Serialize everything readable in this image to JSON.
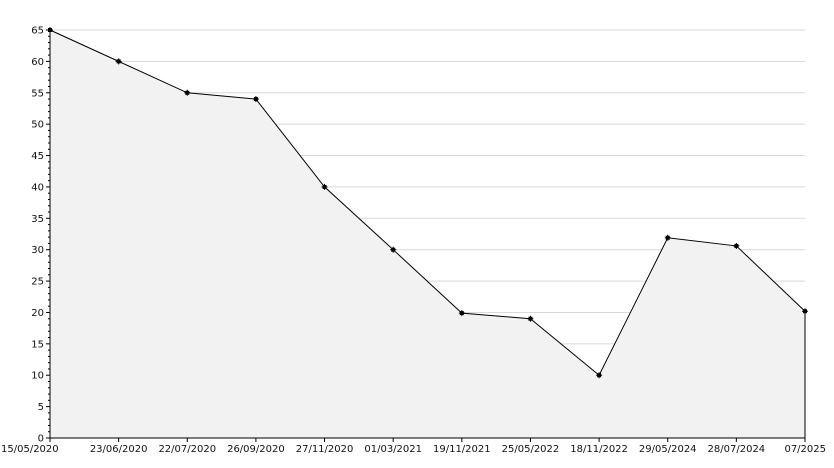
{
  "colors": {
    "background": "#ffffff",
    "grid": "#d8d8d8",
    "axis": "#000000",
    "area_fill": "#f2f2f2",
    "line": "#000000",
    "marker": "#000000"
  },
  "chart_data": {
    "type": "area",
    "title": "",
    "xlabel": "",
    "ylabel": "",
    "grid": "horizontal",
    "legend": "none",
    "ylim": [
      0,
      65
    ],
    "y_ticks": [
      0,
      5,
      10,
      15,
      20,
      25,
      30,
      35,
      40,
      45,
      50,
      55,
      60,
      65
    ],
    "categories": [
      "15/05/2020",
      "23/06/2020",
      "22/07/2020",
      "26/09/2020",
      "27/11/2020",
      "01/03/2021",
      "19/11/2021",
      "25/05/2022",
      "18/11/2022",
      "29/05/2024",
      "28/07/2024",
      "07/2025"
    ],
    "series": [
      {
        "values": [
          65,
          60,
          55,
          54,
          40,
          30,
          19.9,
          19,
          10,
          31.9,
          30.6,
          20.2
        ]
      }
    ]
  }
}
